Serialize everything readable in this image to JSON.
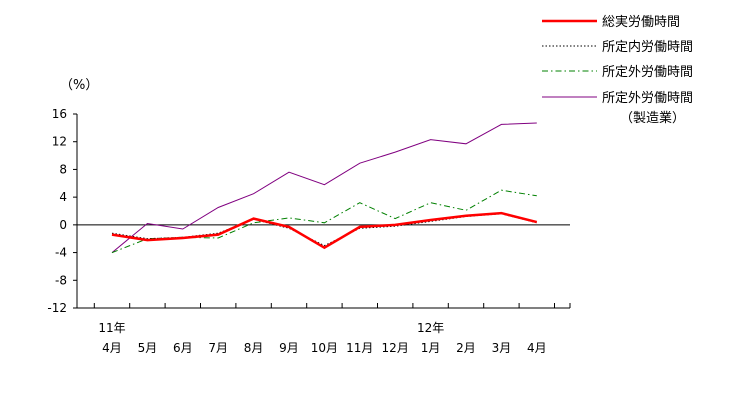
{
  "chart_data": {
    "type": "line",
    "ylabel": "（%）",
    "ylim": [
      -12,
      16
    ],
    "yticks": [
      -12,
      -8,
      -4,
      0,
      4,
      8,
      12,
      16
    ],
    "grid": false,
    "legend_position": "top-right",
    "categories": [
      "4月",
      "5月",
      "6月",
      "7月",
      "8月",
      "9月",
      "10月",
      "11月",
      "12月",
      "1月",
      "2月",
      "3月",
      "4月"
    ],
    "year_labels": [
      {
        "index": 0,
        "label": "11年"
      },
      {
        "index": 9,
        "label": "12年"
      }
    ],
    "series": [
      {
        "name": "総実労働時間",
        "color": "#ff0000",
        "style": "solid-thick",
        "values": [
          -1.4,
          -2.2,
          -1.9,
          -1.4,
          0.9,
          -0.3,
          -3.3,
          -0.3,
          0.0,
          0.7,
          1.3,
          1.7,
          0.4
        ]
      },
      {
        "name": "所定内労働時間",
        "color": "#000000",
        "style": "dotted",
        "values": [
          -1.2,
          -2.0,
          -1.8,
          -1.2,
          0.8,
          -0.5,
          -3.0,
          -0.5,
          -0.2,
          0.5,
          1.2,
          1.6,
          0.3
        ]
      },
      {
        "name": "所定外労働時間",
        "color": "#008000",
        "style": "dashdot",
        "values": [
          -4.0,
          -2.0,
          -1.8,
          -1.9,
          0.3,
          1.0,
          0.3,
          3.2,
          0.9,
          3.2,
          2.1,
          5.0,
          4.2
        ]
      },
      {
        "name": "所定外労働時間",
        "name2": "（製造業）",
        "color": "#800080",
        "style": "solid-thin",
        "values": [
          -4.0,
          0.2,
          -0.6,
          2.5,
          4.5,
          7.6,
          5.8,
          8.9,
          10.5,
          12.3,
          11.7,
          14.5,
          14.7
        ]
      }
    ]
  }
}
